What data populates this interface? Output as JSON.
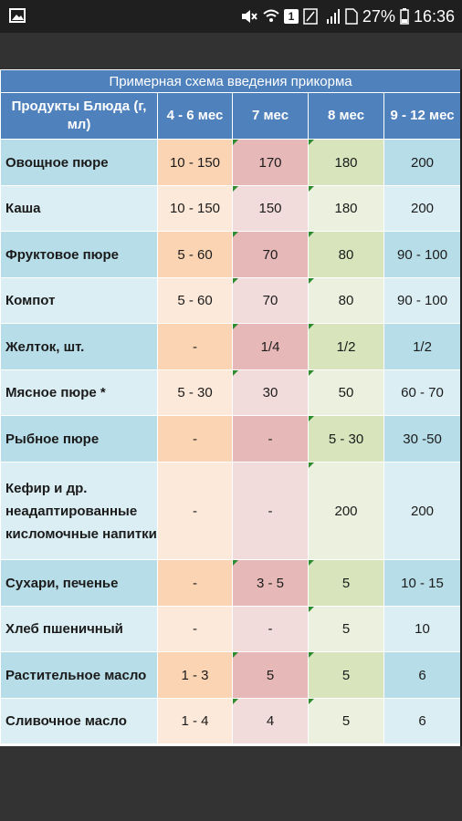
{
  "status_bar": {
    "battery_percent": "27%",
    "time": "16:36",
    "sim_badge": "1",
    "icons": [
      "image-icon",
      "mute-icon",
      "wifi-icon",
      "sim-icon",
      "signal-icon",
      "battery-icon"
    ]
  },
  "table": {
    "title": "Примерная схема введения прикорма",
    "headers": [
      "Продукты Блюда (г, мл)",
      "4 - 6 мес",
      "7 мес",
      "8 мес",
      "9 - 12 мес"
    ],
    "rows": [
      {
        "name": "Овощное пюре",
        "c1": "10 - 150",
        "c2": "170",
        "c3": "180",
        "c4": "200"
      },
      {
        "name": "Каша",
        "c1": "10 - 150",
        "c2": "150",
        "c3": "180",
        "c4": "200"
      },
      {
        "name": "Фруктовое пюре",
        "c1": "5 - 60",
        "c2": "70",
        "c3": "80",
        "c4": "90 - 100"
      },
      {
        "name": "Компот",
        "c1": "5 - 60",
        "c2": "70",
        "c3": "80",
        "c4": "90 - 100"
      },
      {
        "name": "Желток, шт.",
        "c1": "-",
        "c2": "1/4",
        "c3": "1/2",
        "c4": "1/2"
      },
      {
        "name": "Мясное пюре *",
        "c1": "5 - 30",
        "c2": "30",
        "c3": "50",
        "c4": "60 - 70"
      },
      {
        "name": "Рыбное пюре",
        "c1": "-",
        "c2": "-",
        "c3": "5 - 30",
        "c4": "30 -50"
      },
      {
        "name": "Кефир и др. неадаптированные кисломочные напитки",
        "c1": "-",
        "c2": "-",
        "c3": "200",
        "c4": "200"
      },
      {
        "name": "Сухари, печенье",
        "c1": "-",
        "c2": "3 - 5",
        "c3": "5",
        "c4": "10 - 15"
      },
      {
        "name": "Хлеб пшеничный",
        "c1": "-",
        "c2": "-",
        "c3": "5",
        "c4": "10"
      },
      {
        "name": "Растительное масло",
        "c1": "1 - 3",
        "c2": "5",
        "c3": "5",
        "c4": "6"
      },
      {
        "name": "Сливочное масло",
        "c1": "1 - 4",
        "c2": "4",
        "c3": "5",
        "c4": "6"
      }
    ]
  }
}
